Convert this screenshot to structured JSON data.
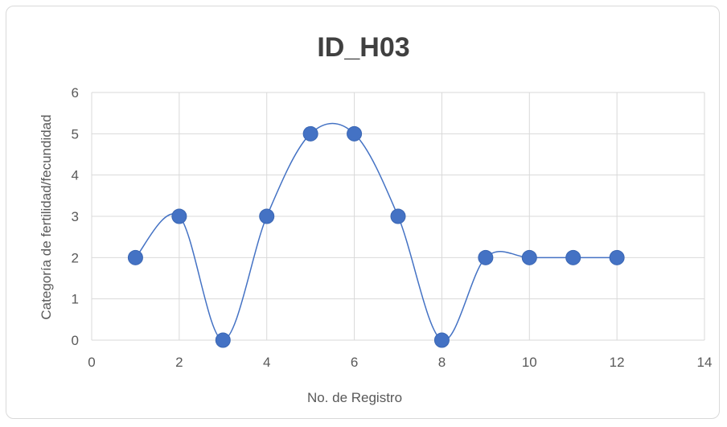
{
  "chart_data": {
    "type": "scatter",
    "title": "ID_H03",
    "xlabel": "No. de Registro",
    "ylabel": "Categoría de fertilidad/fecundidad",
    "xlim": [
      0,
      14
    ],
    "ylim": [
      0,
      6
    ],
    "x_ticks": [
      0,
      2,
      4,
      6,
      8,
      10,
      12,
      14
    ],
    "y_ticks": [
      0,
      1,
      2,
      3,
      4,
      5,
      6
    ],
    "grid": true,
    "smooth_line": true,
    "color": "#4472C4",
    "series": [
      {
        "x": [
          1,
          2,
          3,
          4,
          5,
          6,
          7,
          8,
          9,
          10,
          11,
          12
        ],
        "y": [
          2,
          3,
          0,
          3,
          5,
          5,
          3,
          0,
          2,
          2,
          2,
          2
        ]
      }
    ]
  }
}
